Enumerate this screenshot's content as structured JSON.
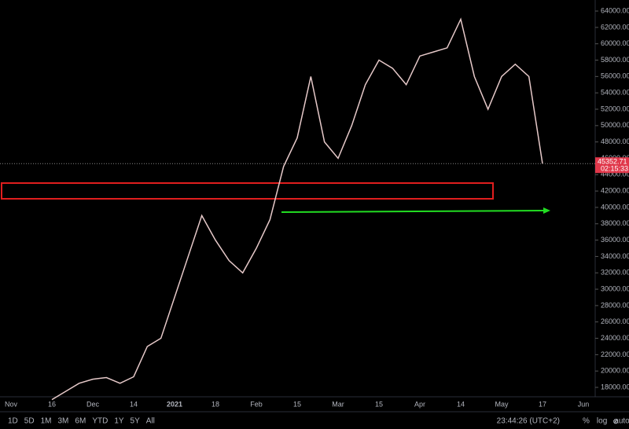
{
  "chart_data": {
    "type": "line",
    "categories": [
      "Nov",
      null,
      null,
      "16",
      null,
      null,
      "Dec",
      null,
      null,
      "14",
      null,
      null,
      "2021",
      null,
      null,
      "18",
      null,
      null,
      "Feb",
      null,
      null,
      "15",
      null,
      null,
      "Mar",
      null,
      null,
      "15",
      null,
      null,
      "Apr",
      null,
      null,
      "14",
      null,
      null,
      "May",
      null,
      null,
      "17",
      null,
      null,
      "Jun"
    ],
    "values": [
      null,
      null,
      null,
      16500,
      17500,
      18500,
      19000,
      19200,
      18500,
      19300,
      23000,
      24000,
      29000,
      34000,
      39000,
      36000,
      33500,
      32000,
      35000,
      38500,
      45000,
      48500,
      56000,
      48000,
      46000,
      50000,
      55000,
      58000,
      57000,
      55000,
      58500,
      59000,
      59500,
      63000,
      56000,
      52000,
      56000,
      57500,
      56000,
      45353,
      null,
      null,
      null
    ],
    "color": "#e6c9c9",
    "ylim": [
      16850,
      65350
    ],
    "yticks": [
      {
        "value": 18000,
        "label": "18000.00"
      },
      {
        "value": 20000,
        "label": "20000.00"
      },
      {
        "value": 22000,
        "label": "22000.00"
      },
      {
        "value": 24000,
        "label": "24000.00"
      },
      {
        "value": 26000,
        "label": "26000.00"
      },
      {
        "value": 28000,
        "label": "28000.00"
      },
      {
        "value": 30000,
        "label": "30000.00"
      },
      {
        "value": 32000,
        "label": "32000.00"
      },
      {
        "value": 34000,
        "label": "34000.00"
      },
      {
        "value": 36000,
        "label": "36000.00"
      },
      {
        "value": 38000,
        "label": "38000.00"
      },
      {
        "value": 40000,
        "label": "40000.00"
      },
      {
        "value": 42000,
        "label": "42000.00"
      },
      {
        "value": 44000,
        "label": "44000.00"
      },
      {
        "value": 46000,
        "label": "46000.00"
      },
      {
        "value": 48000,
        "label": "48000.00"
      },
      {
        "value": 50000,
        "label": "50000.00"
      },
      {
        "value": 52000,
        "label": "52000.00"
      },
      {
        "value": 54000,
        "label": "54000.00"
      },
      {
        "value": 56000,
        "label": "56000.00"
      },
      {
        "value": 58000,
        "label": "58000.00"
      },
      {
        "value": 60000,
        "label": "60000.00"
      },
      {
        "value": 62000,
        "label": "62000.00"
      },
      {
        "value": 64000,
        "label": "64000.00"
      }
    ],
    "last_price": 45352.71,
    "countdown": "02:15:33",
    "ranges": [
      "1D",
      "5D",
      "1M",
      "3M",
      "6M",
      "YTD",
      "1Y",
      "5Y",
      "All"
    ],
    "clock": "23:44:26 (UTC+2)",
    "scale_options": [
      "%",
      "log",
      "auto"
    ]
  }
}
